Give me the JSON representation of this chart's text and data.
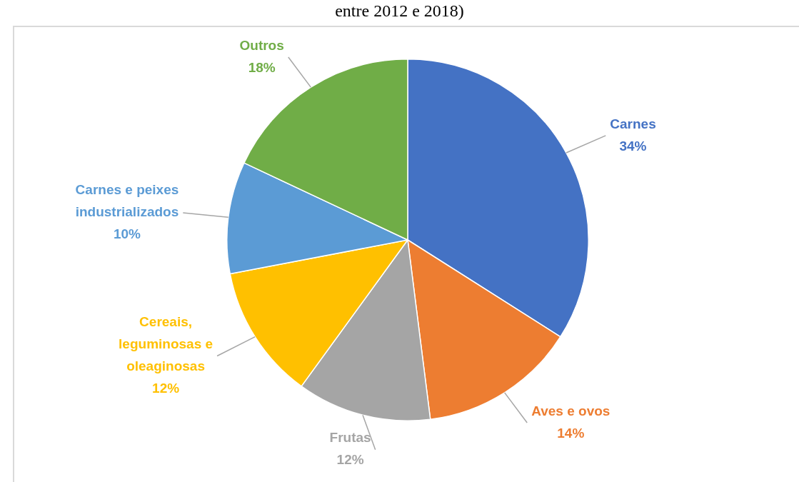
{
  "chart_data": {
    "type": "pie",
    "title": "entre 2012 e 2018)",
    "categories": [
      "Carnes",
      "Aves e ovos",
      "Frutas",
      "Cereais, leguminosas e oleaginosas",
      "Carnes e peixes industrializados",
      "Outros"
    ],
    "values": [
      34,
      14,
      12,
      12,
      10,
      18
    ],
    "value_labels": [
      "34%",
      "14%",
      "12%",
      "12%",
      "10%",
      "18%"
    ],
    "colors": [
      "#4472c4",
      "#ed7d31",
      "#a5a5a5",
      "#ffc000",
      "#5b9bd5",
      "#70ad47"
    ],
    "legend": false
  }
}
